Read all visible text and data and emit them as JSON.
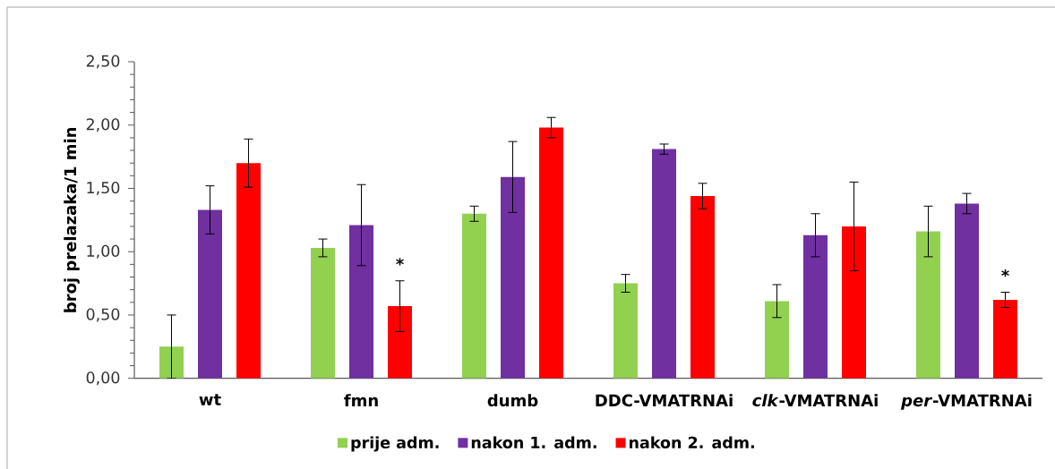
{
  "chart_data": {
    "type": "bar",
    "ylabel": "broj prelazaka/1 min",
    "categories": [
      "wt",
      "fmn",
      "dumb",
      "DDC-VMATRNAi",
      "*clk*-VMATRNAi",
      "*per*-VMATRNAi"
    ],
    "series": [
      {
        "name": "prije adm.",
        "color": "#92d050",
        "values": [
          0.25,
          1.03,
          1.3,
          0.75,
          0.61,
          1.16
        ],
        "errors": [
          0.25,
          0.07,
          0.06,
          0.07,
          0.13,
          0.2
        ]
      },
      {
        "name": "nakon 1. adm.",
        "color": "#7030a0",
        "values": [
          1.33,
          1.21,
          1.59,
          1.81,
          1.13,
          1.38
        ],
        "errors": [
          0.19,
          0.32,
          0.28,
          0.04,
          0.17,
          0.08
        ]
      },
      {
        "name": "nakon 2. adm.",
        "color": "#ff0000",
        "values": [
          1.7,
          0.57,
          1.98,
          1.44,
          1.2,
          0.62
        ],
        "errors": [
          0.19,
          0.2,
          0.08,
          0.1,
          0.35,
          0.06
        ]
      }
    ],
    "ylim": [
      0,
      2.5
    ],
    "yticks": [
      {
        "value": 0,
        "label": "0,00"
      },
      {
        "value": 0.1,
        "label": null
      },
      {
        "value": 0.2,
        "label": null
      },
      {
        "value": 0.3,
        "label": null
      },
      {
        "value": 0.4,
        "label": null
      },
      {
        "value": 0.5,
        "label": "0,50"
      },
      {
        "value": 0.6,
        "label": null
      },
      {
        "value": 0.7,
        "label": null
      },
      {
        "value": 0.8,
        "label": null
      },
      {
        "value": 0.9,
        "label": null
      },
      {
        "value": 1.0,
        "label": "1,00"
      },
      {
        "value": 1.1,
        "label": null
      },
      {
        "value": 1.2,
        "label": null
      },
      {
        "value": 1.3,
        "label": null
      },
      {
        "value": 1.4,
        "label": null
      },
      {
        "value": 1.5,
        "label": "1,50"
      },
      {
        "value": 1.6,
        "label": null
      },
      {
        "value": 1.7,
        "label": null
      },
      {
        "value": 1.8,
        "label": null
      },
      {
        "value": 1.9,
        "label": null
      },
      {
        "value": 2.0,
        "label": "2,00"
      },
      {
        "value": 2.1,
        "label": null
      },
      {
        "value": 2.2,
        "label": null
      },
      {
        "value": 2.3,
        "label": null
      },
      {
        "value": 2.4,
        "label": null
      },
      {
        "value": 2.5,
        "label": "2,50"
      }
    ],
    "legend": "bottom",
    "annotations": [
      "*",
      "*"
    ]
  }
}
